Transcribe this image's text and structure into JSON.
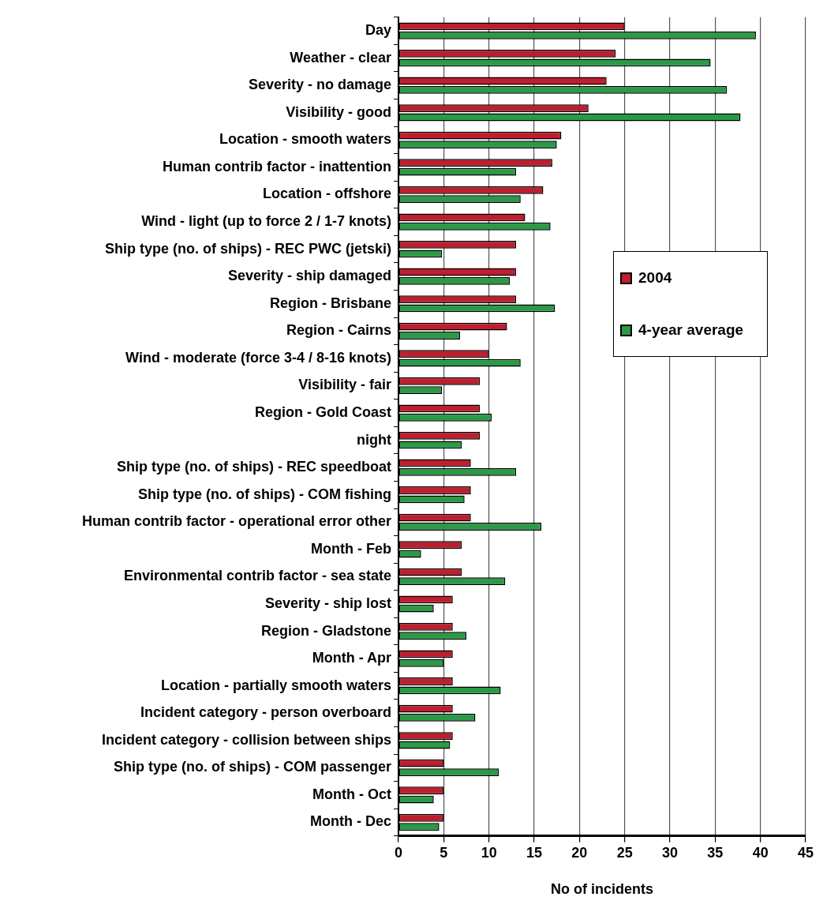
{
  "chart_data": {
    "type": "bar",
    "orientation": "horizontal",
    "xlabel": "No of incidents",
    "categories": [
      "Day",
      "Weather - clear",
      "Severity - no damage",
      "Visibility - good",
      "Location - smooth waters",
      "Human contrib factor - inattention",
      "Location - offshore",
      "Wind - light (up to force 2 / 1-7 knots)",
      "Ship type (no. of ships) - REC PWC (jetski)",
      "Severity - ship damaged",
      "Region - Brisbane",
      "Region - Cairns",
      "Wind - moderate (force 3-4 / 8-16 knots)",
      "Visibility - fair",
      "Region - Gold Coast",
      "night",
      "Ship type (no. of ships) - REC speedboat",
      "Ship type (no. of ships) - COM fishing",
      "Human contrib factor - operational error other",
      "Month - Feb",
      "Environmental contrib factor - sea state",
      "Severity - ship lost",
      "Region - Gladstone",
      "Month - Apr",
      "Location - partially smooth waters",
      "Incident category - person overboard",
      "Incident category - collision between ships",
      "Ship type (no. of ships) - COM passenger",
      "Month - Oct",
      "Month - Dec"
    ],
    "series": [
      {
        "name": "2004",
        "color": "#be1e2d",
        "values": [
          25,
          24,
          23,
          21,
          18,
          17,
          16,
          14,
          13,
          13,
          13,
          12,
          10,
          9,
          9,
          9,
          8,
          8,
          8,
          7,
          7,
          6,
          6,
          6,
          6,
          6,
          6,
          5,
          5,
          5
        ]
      },
      {
        "name": "4-year average",
        "color": "#2a9a47",
        "values": [
          39.5,
          34.5,
          36.3,
          37.8,
          17.5,
          13,
          13.5,
          16.8,
          4.8,
          12.3,
          17.3,
          6.8,
          13.5,
          4.8,
          10.3,
          7,
          13,
          7.3,
          15.8,
          2.5,
          11.8,
          3.9,
          7.5,
          5,
          11.3,
          8.5,
          5.7,
          11.1,
          3.9,
          4.5
        ]
      }
    ],
    "xlim": [
      0,
      45
    ],
    "xticks": [
      0,
      5,
      10,
      15,
      20,
      25,
      30,
      35,
      40,
      45
    ],
    "grid": "x",
    "legend": "right"
  }
}
